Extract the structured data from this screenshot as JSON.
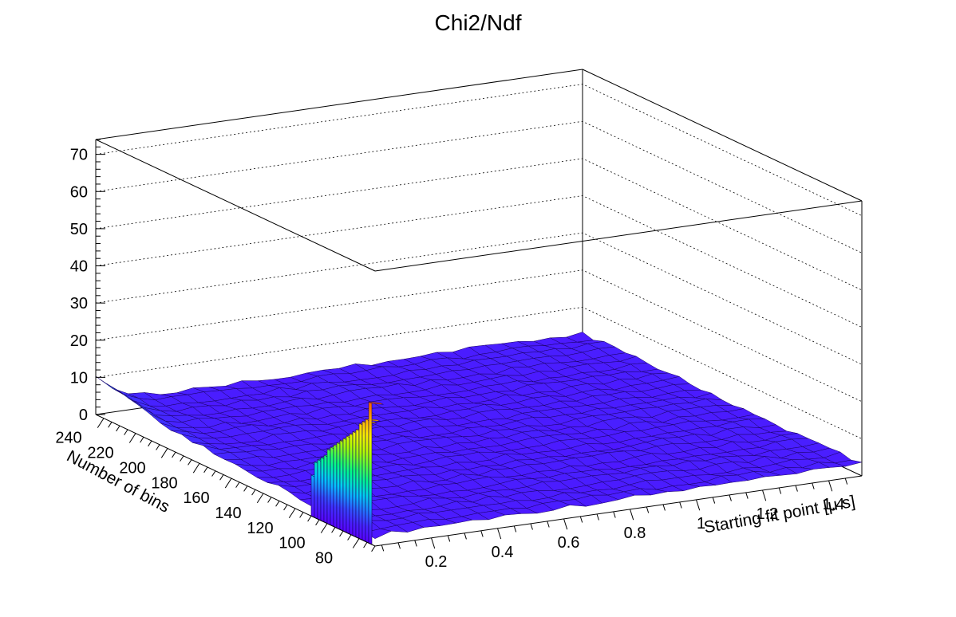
{
  "chart_data": {
    "type": "surface",
    "title": "Chi2/Ndf",
    "xlabel": "Starting fit point [μ s]",
    "ylabel": "Number of bins",
    "zlabel": "",
    "x_ticks": [
      "0.2",
      "0.4",
      "0.6",
      "0.8",
      "1",
      "1.2",
      "1.4"
    ],
    "y_ticks": [
      "80",
      "100",
      "120",
      "140",
      "160",
      "180",
      "200",
      "220",
      "240"
    ],
    "z_ticks": [
      "0",
      "10",
      "20",
      "30",
      "40",
      "50",
      "60",
      "70"
    ],
    "xlim": [
      0.03,
      1.5
    ],
    "ylim": [
      70,
      245
    ],
    "zlim": [
      0,
      74
    ],
    "grid": true,
    "colormap": [
      "#5a00ff",
      "#3d35ff",
      "#00c9ff",
      "#00ff80",
      "#a4ff00",
      "#ffee00",
      "#ff9a00",
      "#ff3a00"
    ],
    "baseline_level": 2.5,
    "features": {
      "low_x_edge": [
        {
          "y": 70,
          "z": 2.0
        },
        {
          "y": 100,
          "z": 2.5
        },
        {
          "y": 130,
          "z": 3.0
        },
        {
          "y": 160,
          "z": 3.5
        },
        {
          "y": 190,
          "z": 4.5
        },
        {
          "y": 210,
          "z": 6.0
        },
        {
          "y": 225,
          "z": 8.0
        },
        {
          "y": 240,
          "z": 9.5
        }
      ],
      "spike_ridge": {
        "x": 0.03,
        "y_values": [
          72,
          74,
          76,
          78,
          80,
          82,
          84,
          86,
          88,
          90,
          92,
          94,
          96,
          98,
          100,
          102,
          104,
          106,
          108
        ],
        "z_values": [
          38,
          33,
          32,
          31,
          29,
          28,
          27,
          26,
          25,
          24,
          23,
          22,
          21,
          20,
          18,
          17,
          16,
          15,
          11
        ]
      }
    }
  }
}
